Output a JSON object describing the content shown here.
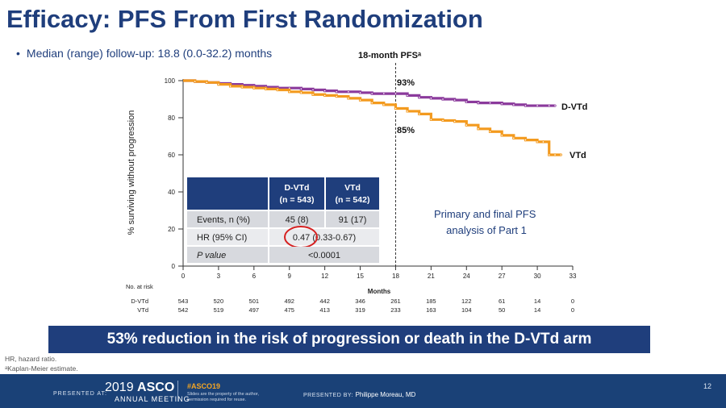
{
  "title": "Efficacy: PFS From First Randomization",
  "bullet": "Median (range) follow-up: 18.8 (0.0-32.2) months",
  "chart_data": {
    "type": "line",
    "ylabel": "% surviving without progression",
    "xlabel": "Months",
    "xlim": [
      0,
      33
    ],
    "ylim": [
      0,
      100
    ],
    "xticks": [
      "0",
      "3",
      "6",
      "9",
      "12",
      "15",
      "18",
      "21",
      "24",
      "27",
      "30",
      "33"
    ],
    "yticks": [
      "0",
      "20",
      "40",
      "60",
      "80",
      "100"
    ],
    "marker_label": "18-month PFSᵃ",
    "marker_x": 18,
    "series": [
      {
        "name": "D-VTd",
        "color": "#8b3a9c",
        "x": [
          0,
          1,
          2,
          3,
          4,
          5,
          6,
          7,
          8,
          9,
          10,
          11,
          12,
          13,
          14,
          15,
          16,
          17,
          18,
          19,
          20,
          21,
          22,
          23,
          24,
          25,
          26,
          27,
          28,
          29,
          30,
          31,
          31.5
        ],
        "y": [
          100,
          99.5,
          99,
          98.5,
          98,
          97.5,
          97,
          96.5,
          96,
          96,
          95.5,
          95,
          94.5,
          94,
          94,
          93.5,
          93,
          93,
          93,
          92,
          91,
          90.5,
          90,
          89.5,
          88.5,
          88,
          88,
          87.5,
          87,
          86.5,
          86.5,
          86.5,
          86.5
        ]
      },
      {
        "name": "VTd",
        "color": "#f39a1e",
        "x": [
          0,
          1,
          2,
          3,
          4,
          5,
          6,
          7,
          8,
          9,
          10,
          11,
          12,
          13,
          14,
          15,
          16,
          17,
          18,
          19,
          20,
          21,
          22,
          23,
          24,
          25,
          26,
          27,
          28,
          29,
          30,
          30.5,
          31,
          31.5,
          32
        ],
        "y": [
          100,
          99.5,
          99,
          98,
          97,
          96.5,
          96,
          95.5,
          95,
          94,
          93.5,
          92.5,
          92,
          91.5,
          90.5,
          89.5,
          88,
          87,
          85,
          83.5,
          82,
          79,
          78.5,
          78,
          76,
          74,
          72.5,
          70.5,
          69,
          68,
          67,
          67,
          60,
          60,
          60
        ]
      }
    ],
    "labels": {
      "dvtd_pfs": "93%",
      "vtd_pfs": "85%",
      "dvtd_end": "D-VTd",
      "vtd_end": "VTd"
    },
    "annotation": "Primary and final PFS analysis of Part 1",
    "stats_table": {
      "headers": [
        "",
        "D-VTd (n = 543)",
        "VTd (n = 542)"
      ],
      "header_line1": [
        "",
        "D-VTd",
        "VTd"
      ],
      "header_line2": [
        "",
        "(n = 543)",
        "(n = 542)"
      ],
      "rows": [
        {
          "label": "Events, n (%)",
          "dvtd": "45 (8)",
          "vtd": "91 (17)"
        },
        {
          "label": "HR (95% CI)",
          "merged": "0.47 (0.33-0.67)"
        },
        {
          "label": "P value",
          "merged": "<0.0001"
        }
      ]
    },
    "risk_table": {
      "title": "No. at risk",
      "rows": [
        {
          "name": "D-VTd",
          "values": [
            "543",
            "520",
            "501",
            "492",
            "442",
            "346",
            "261",
            "185",
            "122",
            "61",
            "14",
            "0"
          ]
        },
        {
          "name": "VTd",
          "values": [
            "542",
            "519",
            "497",
            "475",
            "413",
            "319",
            "233",
            "163",
            "104",
            "50",
            "14",
            "0"
          ]
        }
      ]
    }
  },
  "banner": "53% reduction in the risk of progression or death in the D-VTd arm",
  "footnotes": [
    "HR, hazard ratio.",
    "ᵃKaplan-Meier estimate."
  ],
  "footer": {
    "presented_at": "PRESENTED AT:",
    "asco_year": "2019",
    "asco_brand": "ASCO",
    "asco_sub": "ANNUAL MEETING",
    "hashtag": "#ASCO19",
    "slides_note": "Slides are the property of the author, permission required for reuse.",
    "presented_by": "PRESENTED BY:",
    "presenter": "Philippe Moreau, MD",
    "page": "12"
  }
}
